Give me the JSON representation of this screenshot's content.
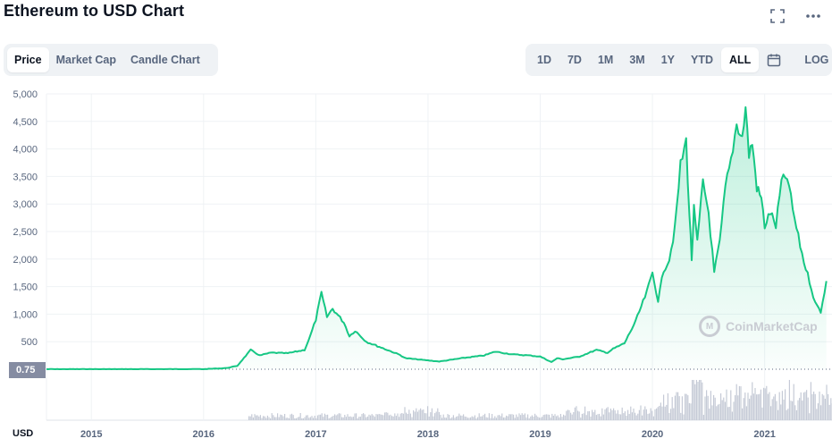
{
  "header": {
    "title": "Ethereum to USD Chart"
  },
  "top_icons": [
    {
      "name": "fullscreen-icon",
      "glyph": "⛶"
    },
    {
      "name": "more-options-icon",
      "glyph": "•••"
    }
  ],
  "view_tabs": [
    {
      "label": "Price",
      "active": true
    },
    {
      "label": "Market Cap",
      "active": false
    },
    {
      "label": "Candle Chart",
      "active": false
    }
  ],
  "range_tabs": [
    {
      "label": "1D",
      "active": false
    },
    {
      "label": "7D",
      "active": false
    },
    {
      "label": "1M",
      "active": false
    },
    {
      "label": "3M",
      "active": false
    },
    {
      "label": "1Y",
      "active": false
    },
    {
      "label": "YTD",
      "active": false
    },
    {
      "label": "ALL",
      "active": true
    }
  ],
  "calendar_icon": "calendar-icon",
  "log_label": "LOG",
  "price_badge": "0.75",
  "currency_label": "USD",
  "watermark": "CoinMarketCap",
  "colors": {
    "line": "#16c784",
    "fill_top": "#16c784",
    "volume": "#c5cad6",
    "grid": "#eff2f5"
  },
  "chart_data": {
    "type": "line",
    "ylim": [
      0,
      5000
    ],
    "yticks": [
      500,
      1000,
      1500,
      2000,
      2500,
      3000,
      3500,
      4000,
      4500,
      5000
    ],
    "ytick_labels": [
      "500",
      "1,000",
      "1,500",
      "2,000",
      "2,500",
      "3,000",
      "3,500",
      "4,000",
      "4,500",
      "5,000"
    ],
    "xlim": [
      2014.6,
      2021.6
    ],
    "xticks": [
      2015,
      2016,
      2017,
      2018,
      2019,
      2020,
      2021
    ],
    "xtick_labels": [
      "2015",
      "2016",
      "2017",
      "2018",
      "2019",
      "2020",
      "2021"
    ],
    "reference_line": 0.75,
    "series": [
      {
        "values_x": [
          2014.6,
          2015.0,
          2015.5,
          2016.0,
          2016.2,
          2016.3,
          2016.42,
          2016.5,
          2016.6,
          2016.75,
          2016.9,
          2016.95,
          2017.0,
          2017.05,
          2017.1,
          2017.15,
          2017.25,
          2017.3,
          2017.35,
          2017.45,
          2017.6,
          2017.75,
          2017.8,
          2018.0,
          2018.1,
          2018.3,
          2018.5,
          2018.6,
          2018.75,
          2018.9,
          2019.0,
          2019.1,
          2019.15,
          2019.2,
          2019.35,
          2019.5,
          2019.6,
          2019.65,
          2019.75,
          2019.85,
          2019.95,
          2020.0,
          2020.05,
          2020.1,
          2020.15,
          2020.2,
          2020.25,
          2020.3,
          2020.33,
          2020.35,
          2020.37,
          2020.4,
          2020.45,
          2020.5,
          2020.55,
          2020.6,
          2020.65,
          2020.7,
          2020.75,
          2020.8,
          2020.83,
          2020.86,
          2020.89,
          2020.93,
          2020.97,
          2021.0,
          2021.05,
          2021.1,
          2021.15,
          2021.2,
          2021.25,
          2021.3,
          2021.35,
          2021.4,
          2021.45,
          2021.5,
          2021.55
        ],
        "values_y": [
          0.75,
          1,
          1,
          2,
          20,
          60,
          350,
          250,
          300,
          290,
          350,
          600,
          900,
          1380,
          950,
          1100,
          850,
          600,
          700,
          500,
          380,
          260,
          200,
          160,
          140,
          200,
          250,
          320,
          270,
          250,
          230,
          130,
          200,
          180,
          230,
          350,
          300,
          370,
          470,
          870,
          1400,
          1750,
          1250,
          1800,
          2000,
          2550,
          3700,
          4150,
          2800,
          2000,
          2900,
          2300,
          3400,
          2850,
          1750,
          2300,
          3300,
          3800,
          4450,
          4200,
          4750,
          3900,
          4100,
          3300,
          3100,
          2600,
          2850,
          2600,
          3400,
          3500,
          2900,
          2400,
          1950,
          1600,
          1200,
          1050,
          1600
        ]
      }
    ]
  }
}
